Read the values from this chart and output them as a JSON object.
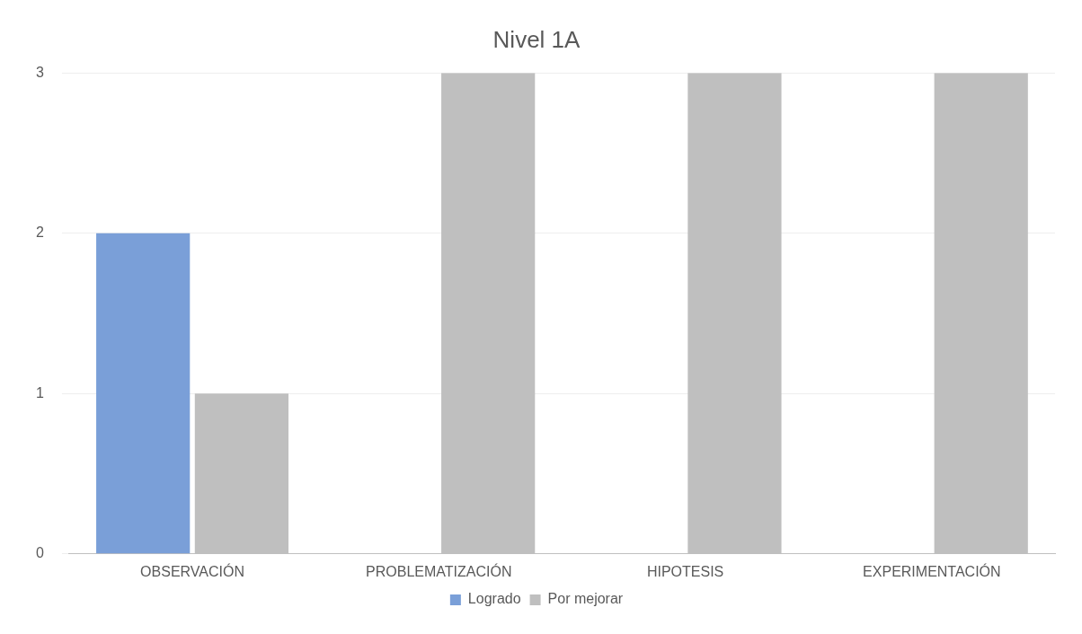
{
  "chart_data": {
    "type": "bar",
    "title": "Nivel 1A",
    "categories": [
      "OBSERVACIÓN",
      "PROBLEMATIZACIÓN",
      "HIPOTESIS",
      "EXPERIMENTACIÓN"
    ],
    "series": [
      {
        "name": "Logrado",
        "color": "#7a9fd8",
        "values": [
          2,
          0,
          0,
          0
        ]
      },
      {
        "name": "Por mejorar",
        "color": "#bfbfbf",
        "values": [
          1,
          3,
          3,
          3
        ]
      }
    ],
    "ylim": [
      0,
      3
    ],
    "yticks": [
      0,
      1,
      2,
      3
    ],
    "grid": "y",
    "legend": "bottom"
  }
}
